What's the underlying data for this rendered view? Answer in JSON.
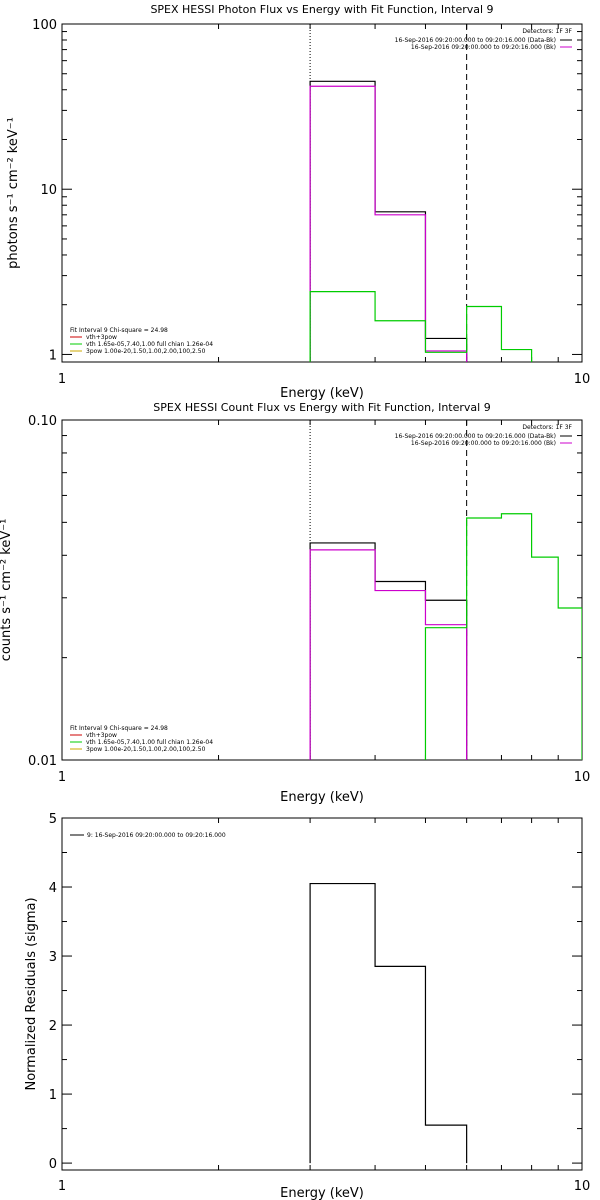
{
  "colors": {
    "axis": "#000000",
    "data_bgsub": "#000000",
    "model_total": "#cc00cc",
    "vth": "#00cc00",
    "legend_line1": "#cc0000",
    "legend_line3": "#ccaa00"
  },
  "chart_data": [
    {
      "type": "line",
      "title": "SPEX HESSI Photon Flux vs Energy with Fit Function, Interval 9",
      "xlabel": "Energy (keV)",
      "ylabel": "photons s⁻¹ cm⁻² keV⁻¹",
      "xscale": "log",
      "yscale": "log",
      "xlim": [
        1,
        10
      ],
      "ylim": [
        0.9,
        100
      ],
      "xticks": [
        1,
        10
      ],
      "xtick_labels": [
        "1",
        "10"
      ],
      "yticks": [
        1,
        10,
        100
      ],
      "ytick_labels": [
        "1",
        "10",
        "100"
      ],
      "fit_range_low": 3.0,
      "fit_range_high": 6.0,
      "bin_edges": [
        3.0,
        4.0,
        5.0,
        6.0,
        7.0,
        8.0
      ],
      "series": [
        {
          "name": "16-Sep-2016 09:20:00.000 to 09:20:16.000 (Data-Bk)",
          "color": "#000000",
          "values": [
            45,
            7.3,
            1.25,
            null,
            null
          ]
        },
        {
          "name": "16-Sep-2016 09:20:00.000 to 09:20:16.000 (Bk)",
          "color": "#cc00cc",
          "values": [
            42,
            7.0,
            1.05,
            null,
            null
          ]
        },
        {
          "name": "vth",
          "color": "#00cc00",
          "values": [
            2.4,
            1.6,
            1.03,
            1.95,
            1.07
          ]
        }
      ],
      "detectors": "Detectors: 1F 3F",
      "legend_lines": [
        "16-Sep-2016 09:20:00.000 to 09:20:16.000 (Data-Bk)",
        "16-Sep-2016 09:20:00.000 to 09:20:16.000 (Bk)"
      ],
      "fit_info": {
        "header": "Fit Interval  9    Chi-square = 24.98",
        "lines": [
          {
            "text": "vth+3pow",
            "color": "#cc0000"
          },
          {
            "text": "vth  1.65e-05,7.40,1.00   full chian 1.26e-04",
            "color": "#00cc00"
          },
          {
            "text": "3pow  1.00e-20,1.50,1.00,2.00,100,2.50",
            "color": "#ccaa00"
          }
        ]
      }
    },
    {
      "type": "line",
      "title": "SPEX HESSI Count Flux vs Energy with Fit Function, Interval 9",
      "xlabel": "Energy (keV)",
      "ylabel": "counts s⁻¹ cm⁻² keV⁻¹",
      "xscale": "log",
      "yscale": "log",
      "xlim": [
        1,
        10
      ],
      "ylim": [
        0.01,
        0.1
      ],
      "xticks": [
        1,
        10
      ],
      "xtick_labels": [
        "1",
        "10"
      ],
      "yticks": [
        0.01,
        0.1
      ],
      "ytick_labels": [
        "0.01",
        "0.10"
      ],
      "fit_range_low": 3.0,
      "fit_range_high": 6.0,
      "bin_edges": [
        3.0,
        4.0,
        5.0,
        6.0,
        7.0,
        8.0,
        9.0,
        10.0
      ],
      "series": [
        {
          "name": "16-Sep-2016 09:20:00.000 to 09:20:16.000 (Data-Bk)",
          "color": "#000000",
          "values": [
            0.0435,
            0.0335,
            0.0295,
            null,
            null,
            null,
            null
          ]
        },
        {
          "name": "16-Sep-2016 09:20:00.000 to 09:20:16.000 (Bk)",
          "color": "#cc00cc",
          "values": [
            0.0415,
            0.0315,
            0.025,
            null,
            null,
            null,
            null
          ]
        },
        {
          "name": "vth",
          "color": "#00cc00",
          "values": [
            null,
            null,
            0.0245,
            0.0515,
            0.053,
            0.0395,
            0.028
          ]
        }
      ],
      "detectors": "Detectors: 1F 3F",
      "legend_lines": [
        "16-Sep-2016 09:20:00.000 to 09:20:16.000 (Data-Bk)",
        "16-Sep-2016 09:20:00.000 to 09:20:16.000 (Bk)"
      ],
      "fit_info": {
        "header": "Fit Interval  9    Chi-square = 24.98",
        "lines": [
          {
            "text": "vth+3pow",
            "color": "#cc0000"
          },
          {
            "text": "vth  1.65e-05,7.40,1.00   full chian 1.26e-04",
            "color": "#00cc00"
          },
          {
            "text": "3pow  1.00e-20,1.50,1.00,2.00,100,2.50",
            "color": "#ccaa00"
          }
        ]
      }
    },
    {
      "type": "line",
      "title": "",
      "xlabel": "Energy (keV)",
      "ylabel": "Normalized Residuals (sigma)",
      "xscale": "log",
      "yscale": "linear",
      "xlim": [
        1,
        10
      ],
      "ylim": [
        -0.1,
        5
      ],
      "xticks": [
        1,
        10
      ],
      "xtick_labels": [
        "1",
        "10"
      ],
      "yticks": [
        0,
        1,
        2,
        3,
        4,
        5
      ],
      "ytick_labels": [
        "0",
        "1",
        "2",
        "3",
        "4",
        "5"
      ],
      "bin_edges": [
        3.0,
        4.0,
        5.0,
        6.0
      ],
      "series": [
        {
          "name": "9: 16-Sep-2016 09:20:00.000 to 09:20:16.000",
          "color": "#000000",
          "values": [
            4.05,
            2.85,
            0.55
          ]
        }
      ],
      "legend_lines": [
        "9: 16-Sep-2016 09:20:00.000 to 09:20:16.000"
      ]
    }
  ]
}
